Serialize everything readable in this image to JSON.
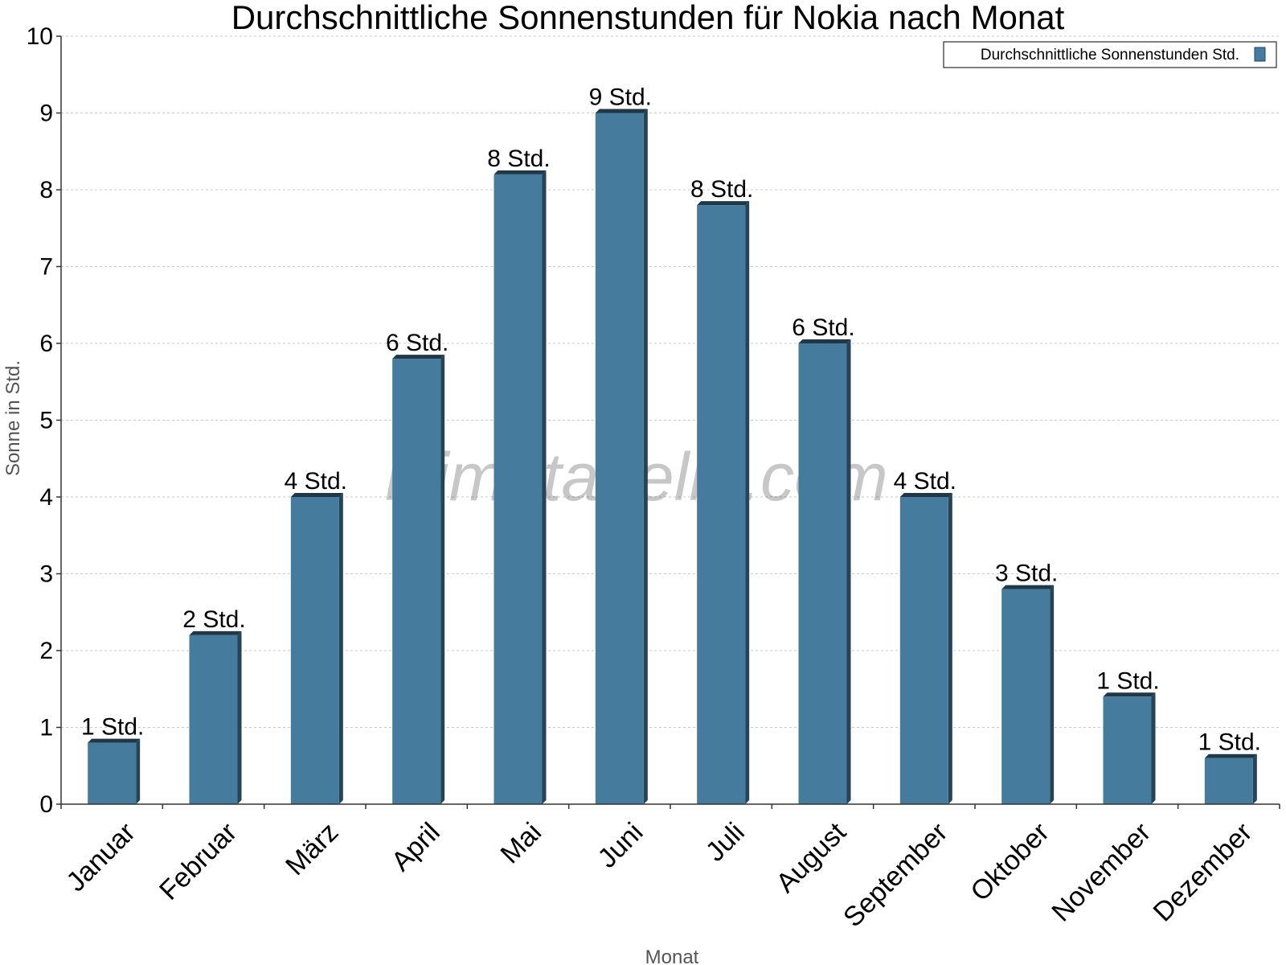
{
  "chart_data": {
    "type": "bar",
    "title": "Durchschnittliche Sonnenstunden für Nokia nach Monat",
    "xlabel": "Monat",
    "ylabel": "Sonne in Std.",
    "ylim": [
      0,
      10
    ],
    "yticks": [
      0,
      1,
      2,
      3,
      4,
      5,
      6,
      7,
      8,
      9,
      10
    ],
    "grid": true,
    "legend_position": "top-right",
    "categories": [
      "Januar",
      "Februar",
      "März",
      "April",
      "Mai",
      "Juni",
      "Juli",
      "August",
      "September",
      "Oktober",
      "November",
      "Dezember"
    ],
    "series": [
      {
        "name": "Durchschnittliche Sonnenstunden Std.",
        "color": "#457b9d",
        "values": [
          0.8,
          2.2,
          4.0,
          5.8,
          8.2,
          9.0,
          7.8,
          6.0,
          4.0,
          2.8,
          1.4,
          0.6
        ],
        "data_labels": [
          "1 Std.",
          "2 Std.",
          "4 Std.",
          "6 Std.",
          "8 Std.",
          "9 Std.",
          "8 Std.",
          "6 Std.",
          "4 Std.",
          "3 Std.",
          "1 Std.",
          "1 Std."
        ]
      }
    ],
    "watermark": "klimatabelle.com"
  }
}
